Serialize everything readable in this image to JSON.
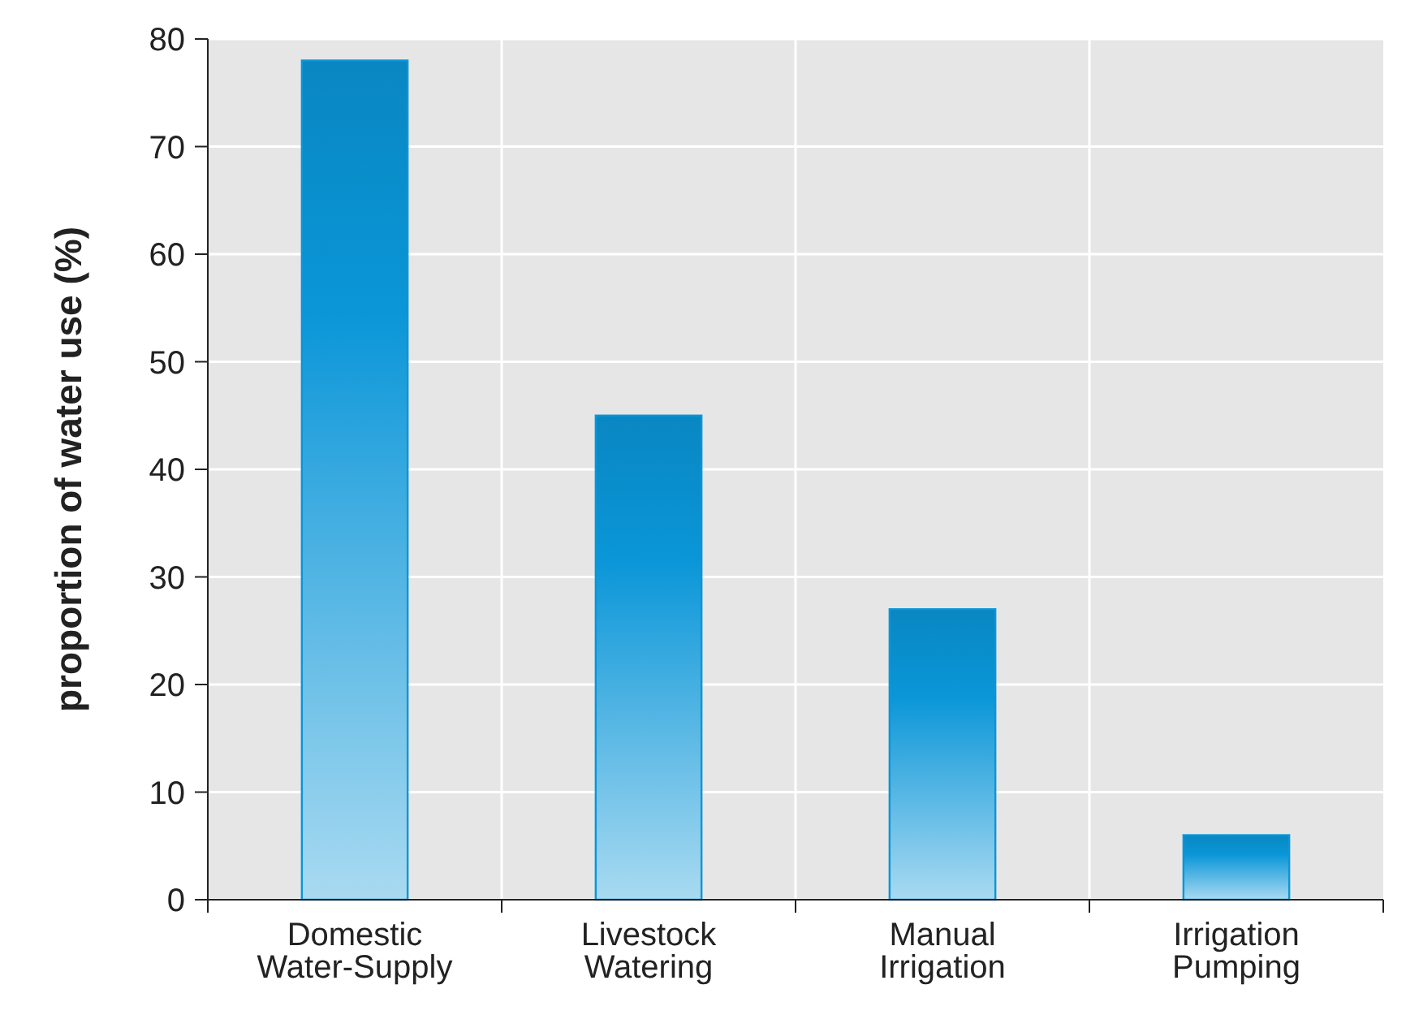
{
  "chart_data": {
    "type": "bar",
    "ylabel": "proportion of water use (%)",
    "categories": [
      "Domestic Water-Supply",
      "Livestock Watering",
      "Manual Irrigation",
      "Irrigation Pumping"
    ],
    "values": [
      78,
      45,
      27,
      6
    ],
    "color": "#0a96d8",
    "ylim": [
      0,
      80
    ],
    "yticks": [
      0,
      10,
      20,
      30,
      40,
      50,
      60,
      70,
      80
    ],
    "grid": true
  }
}
